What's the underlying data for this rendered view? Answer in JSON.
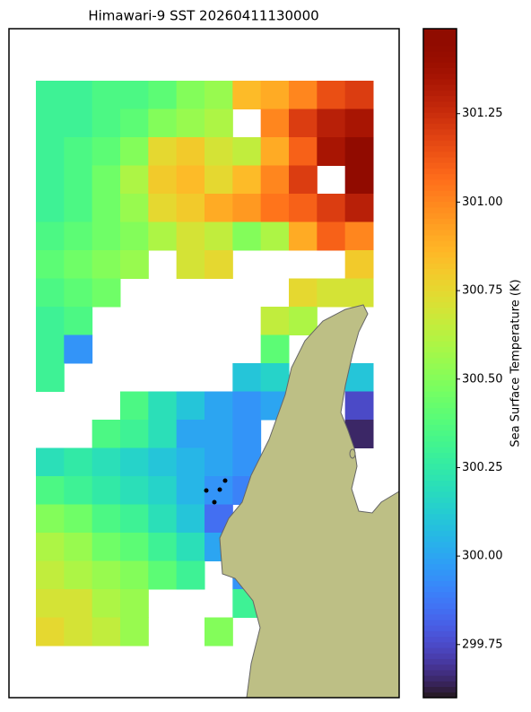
{
  "chart_data": {
    "type": "heatmap",
    "title": "Himawari-9 SST 20260411130000",
    "colorbar_label": "Sea Surface Temperature (K)",
    "colormap": "turbo",
    "clim": [
      299.6,
      301.49
    ],
    "colorbar_ticks": [
      {
        "value": 299.75,
        "label": "299.75"
      },
      {
        "value": 300.0,
        "label": "300.00"
      },
      {
        "value": 300.25,
        "label": "300.25"
      },
      {
        "value": 300.5,
        "label": "300.50"
      },
      {
        "value": 300.75,
        "label": "300.75"
      },
      {
        "value": 301.0,
        "label": "301.00"
      },
      {
        "value": 301.25,
        "label": "301.25"
      }
    ],
    "z": [
      [
        300.3,
        300.3,
        300.35,
        300.35,
        300.4,
        300.5,
        300.55,
        300.85,
        300.9,
        301.0,
        301.15,
        301.2
      ],
      [
        300.3,
        300.3,
        300.35,
        300.4,
        300.5,
        300.55,
        300.6,
        null,
        301.0,
        301.2,
        301.3,
        301.35
      ],
      [
        300.3,
        300.35,
        300.4,
        300.5,
        300.75,
        300.8,
        300.7,
        300.65,
        300.9,
        301.1,
        301.35,
        301.45
      ],
      [
        300.3,
        300.35,
        300.45,
        300.6,
        300.8,
        300.85,
        300.75,
        300.85,
        301.0,
        301.2,
        null,
        301.45
      ],
      [
        300.3,
        300.35,
        300.45,
        300.55,
        300.75,
        300.8,
        300.9,
        300.95,
        301.05,
        301.1,
        301.2,
        301.3
      ],
      [
        300.35,
        300.4,
        300.45,
        300.5,
        300.6,
        300.7,
        300.65,
        300.5,
        300.6,
        300.9,
        301.1,
        301.0
      ],
      [
        300.4,
        300.45,
        300.5,
        300.55,
        null,
        300.7,
        300.75,
        null,
        null,
        null,
        null,
        300.8
      ],
      [
        300.35,
        300.4,
        300.45,
        null,
        null,
        null,
        null,
        null,
        null,
        300.75,
        300.7,
        300.7
      ],
      [
        300.3,
        300.35,
        null,
        null,
        null,
        null,
        null,
        null,
        300.65,
        300.6,
        null,
        null
      ],
      [
        300.3,
        299.95,
        null,
        null,
        null,
        null,
        null,
        null,
        300.4,
        null,
        null,
        null
      ],
      [
        300.3,
        null,
        null,
        null,
        null,
        null,
        null,
        300.1,
        300.15,
        null,
        null,
        300.1
      ],
      [
        null,
        null,
        null,
        300.35,
        300.2,
        300.1,
        300.0,
        299.95,
        300.0,
        null,
        null,
        299.75
      ],
      [
        null,
        null,
        300.35,
        300.3,
        300.2,
        300.0,
        300.0,
        299.95,
        null,
        null,
        null,
        299.65
      ],
      [
        300.2,
        300.25,
        300.2,
        300.15,
        300.1,
        300.05,
        300.0,
        299.95,
        null,
        null,
        null,
        null
      ],
      [
        300.35,
        300.3,
        300.25,
        300.2,
        300.15,
        300.05,
        299.95,
        299.9,
        null,
        null,
        null,
        null
      ],
      [
        300.5,
        300.45,
        300.35,
        300.3,
        300.2,
        300.1,
        299.85,
        null,
        null,
        null,
        null,
        null
      ],
      [
        300.6,
        300.55,
        300.45,
        300.4,
        300.3,
        300.2,
        300.0,
        null,
        null,
        null,
        null,
        null
      ],
      [
        300.65,
        300.6,
        300.55,
        300.5,
        300.4,
        300.3,
        null,
        299.95,
        null,
        null,
        null,
        null
      ],
      [
        300.7,
        300.7,
        300.6,
        300.55,
        null,
        null,
        null,
        300.3,
        null,
        null,
        null,
        null
      ],
      [
        300.75,
        300.7,
        300.65,
        300.55,
        null,
        null,
        300.5,
        null,
        null,
        null,
        null,
        null
      ]
    ]
  }
}
